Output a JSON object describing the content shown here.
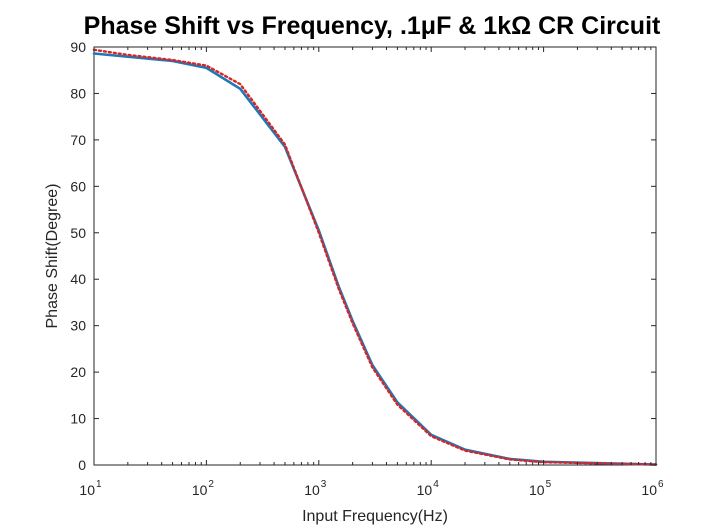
{
  "chart_data": {
    "type": "line",
    "title": "Phase Shift vs Frequency, .1μF & 1kΩ CR Circuit",
    "xlabel": "Input Frequency(Hz)",
    "ylabel": "Phase Shift(Degree)",
    "x_scale": "log",
    "xlim": [
      10,
      1000000
    ],
    "ylim": [
      0,
      90
    ],
    "x_ticks": [
      {
        "base": "10",
        "exp": "1"
      },
      {
        "base": "10",
        "exp": "2"
      },
      {
        "base": "10",
        "exp": "3"
      },
      {
        "base": "10",
        "exp": "4"
      },
      {
        "base": "10",
        "exp": "5"
      },
      {
        "base": "10",
        "exp": "6"
      }
    ],
    "y_ticks": [
      "0",
      "10",
      "20",
      "30",
      "40",
      "50",
      "60",
      "70",
      "80",
      "90"
    ],
    "grid": false,
    "series": [
      {
        "color": "#1f77b4",
        "style": "solid",
        "x": [
          10,
          20,
          50,
          100,
          200,
          500,
          1000,
          1500,
          2000,
          3000,
          5000,
          10000,
          20000,
          50000,
          100000,
          1000000
        ],
        "y": [
          88.6,
          87.9,
          87.0,
          85.5,
          81.0,
          68.5,
          50.5,
          38.5,
          31.0,
          21.5,
          13.5,
          6.5,
          3.3,
          1.3,
          0.7,
          0.1
        ]
      },
      {
        "color": "#d62728",
        "style": "dotted",
        "x": [
          10,
          20,
          50,
          100,
          200,
          500,
          1000,
          1500,
          2000,
          3000,
          5000,
          10000,
          20000,
          50000,
          100000,
          1000000
        ],
        "y": [
          89.4,
          88.3,
          87.2,
          86.0,
          82.0,
          69.0,
          50.0,
          38.0,
          30.5,
          21.0,
          13.0,
          6.2,
          3.1,
          1.2,
          0.6,
          0.1
        ]
      }
    ]
  }
}
